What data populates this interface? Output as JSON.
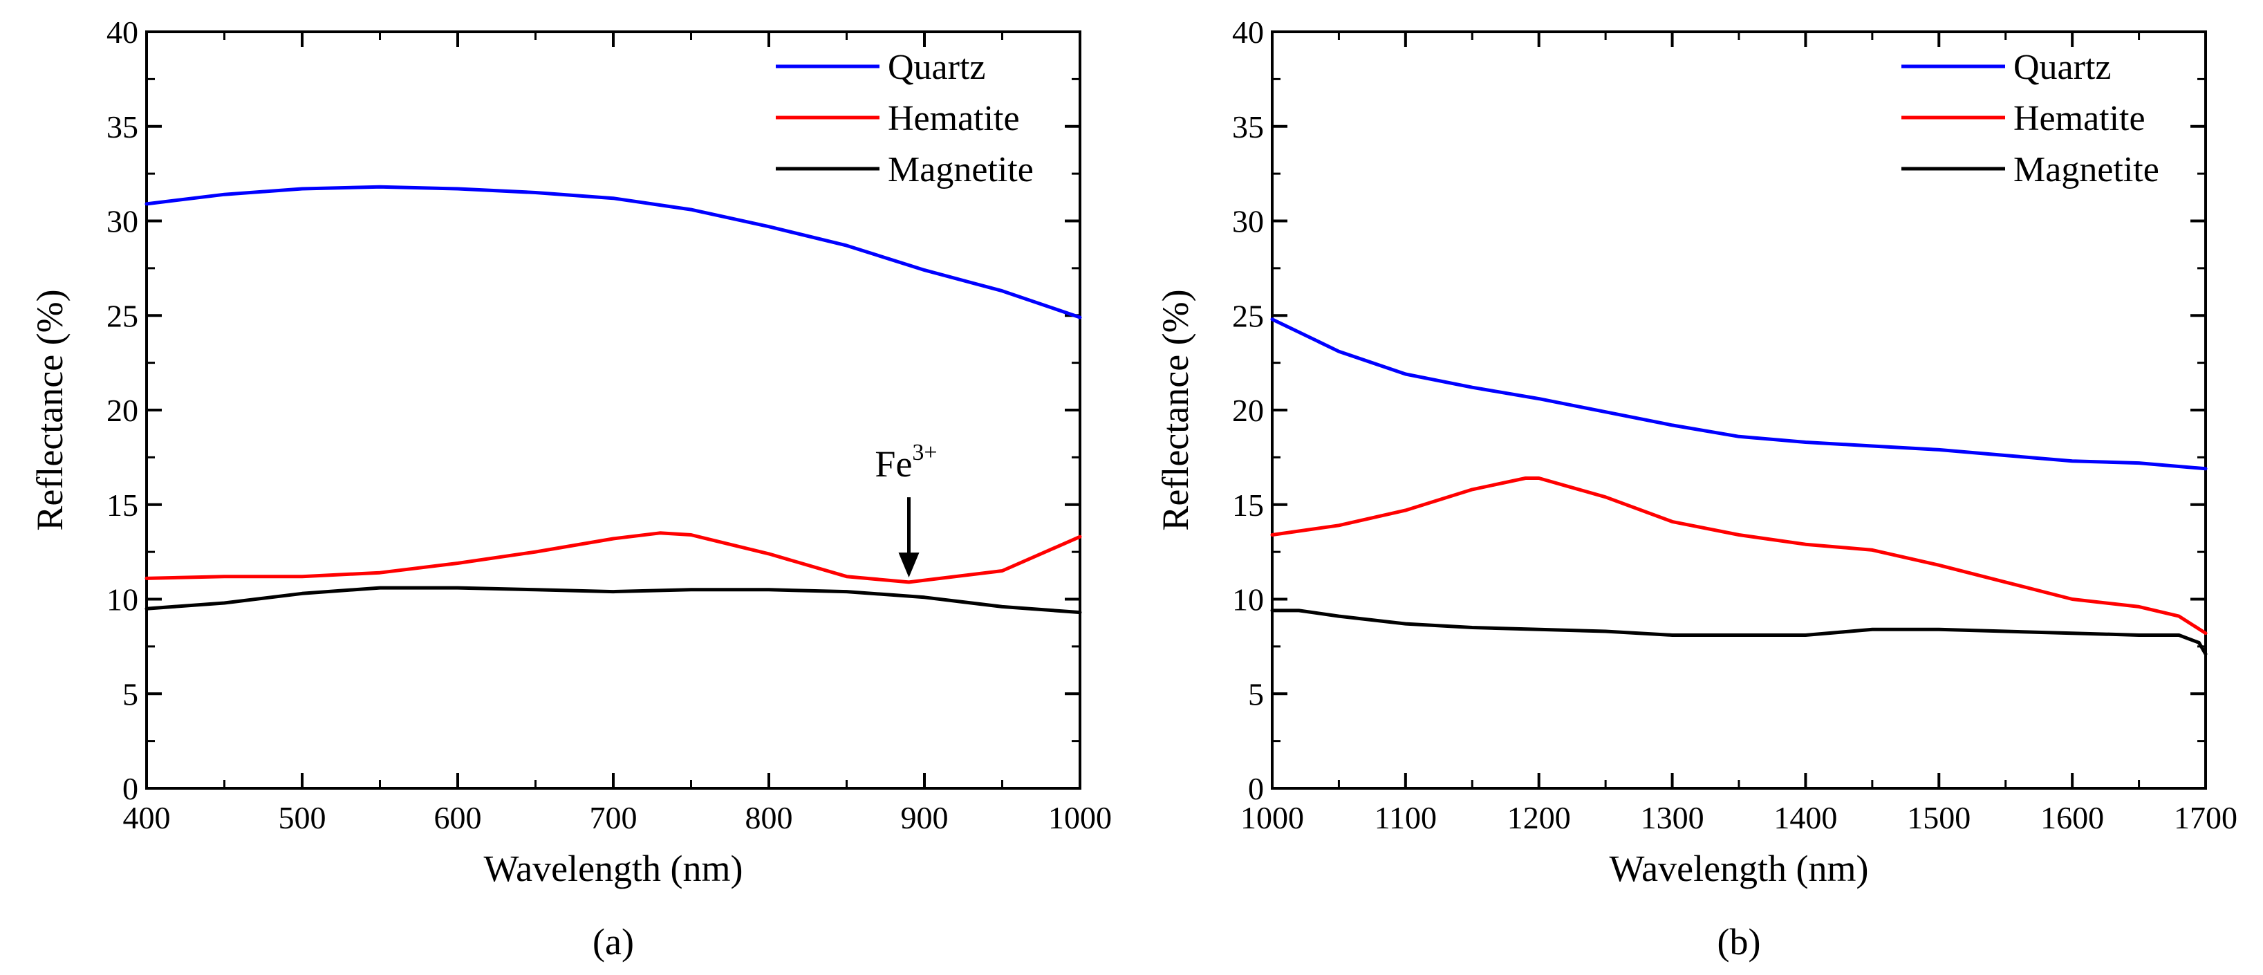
{
  "chart_data": [
    {
      "type": "line",
      "panel_label": "(a)",
      "xlabel": "Wavelength (nm)",
      "ylabel": "Reflectance (%)",
      "xlim": [
        400,
        1000
      ],
      "ylim": [
        0,
        40
      ],
      "xticks": [
        "400",
        "500",
        "600",
        "700",
        "800",
        "900",
        "1000"
      ],
      "yticks": [
        "0",
        "5",
        "10",
        "15",
        "20",
        "25",
        "30",
        "35",
        "40"
      ],
      "legend_position": "top-right",
      "annotation": {
        "text": "Fe",
        "sup": "3+",
        "x": 890,
        "y": 11.0
      },
      "series": [
        {
          "name": "Quartz",
          "color": "#0000ff",
          "x": [
            400,
            450,
            500,
            550,
            600,
            650,
            700,
            750,
            800,
            850,
            900,
            950,
            1000
          ],
          "y": [
            30.9,
            31.4,
            31.7,
            31.8,
            31.7,
            31.5,
            31.2,
            30.6,
            29.7,
            28.7,
            27.4,
            26.3,
            24.9
          ]
        },
        {
          "name": "Hematite",
          "color": "#ff0000",
          "x": [
            400,
            450,
            500,
            550,
            600,
            650,
            700,
            730,
            750,
            800,
            850,
            890,
            950,
            1000
          ],
          "y": [
            11.1,
            11.2,
            11.2,
            11.4,
            11.9,
            12.5,
            13.2,
            13.5,
            13.4,
            12.4,
            11.2,
            10.9,
            11.5,
            13.3
          ]
        },
        {
          "name": "Magnetite",
          "color": "#000000",
          "x": [
            400,
            450,
            500,
            550,
            600,
            650,
            700,
            750,
            800,
            850,
            900,
            950,
            1000
          ],
          "y": [
            9.5,
            9.8,
            10.3,
            10.6,
            10.6,
            10.5,
            10.4,
            10.5,
            10.5,
            10.4,
            10.1,
            9.6,
            9.3
          ]
        }
      ]
    },
    {
      "type": "line",
      "panel_label": "(b)",
      "xlabel": "Wavelength (nm)",
      "ylabel": "Reflectance (%)",
      "xlim": [
        1000,
        1700
      ],
      "ylim": [
        0,
        40
      ],
      "xticks": [
        "1000",
        "1100",
        "1200",
        "1300",
        "1400",
        "1500",
        "1600",
        "1700"
      ],
      "yticks": [
        "0",
        "5",
        "10",
        "15",
        "20",
        "25",
        "30",
        "35",
        "40"
      ],
      "legend_position": "top-right",
      "series": [
        {
          "name": "Quartz",
          "color": "#0000ff",
          "x": [
            1000,
            1050,
            1100,
            1150,
            1200,
            1250,
            1300,
            1350,
            1400,
            1450,
            1500,
            1550,
            1600,
            1650,
            1700
          ],
          "y": [
            24.8,
            23.1,
            21.9,
            21.2,
            20.6,
            19.9,
            19.2,
            18.6,
            18.3,
            18.1,
            17.9,
            17.6,
            17.3,
            17.2,
            16.9
          ]
        },
        {
          "name": "Hematite",
          "color": "#ff0000",
          "x": [
            1000,
            1050,
            1100,
            1150,
            1190,
            1200,
            1250,
            1300,
            1350,
            1400,
            1450,
            1500,
            1550,
            1600,
            1650,
            1680,
            1700
          ],
          "y": [
            13.4,
            13.9,
            14.7,
            15.8,
            16.4,
            16.4,
            15.4,
            14.1,
            13.4,
            12.9,
            12.6,
            11.8,
            10.9,
            10.0,
            9.6,
            9.1,
            8.2
          ]
        },
        {
          "name": "Magnetite",
          "color": "#000000",
          "x": [
            1000,
            1020,
            1050,
            1100,
            1150,
            1200,
            1250,
            1300,
            1350,
            1400,
            1450,
            1500,
            1550,
            1600,
            1650,
            1680,
            1695,
            1700
          ],
          "y": [
            9.4,
            9.4,
            9.1,
            8.7,
            8.5,
            8.4,
            8.3,
            8.1,
            8.1,
            8.1,
            8.4,
            8.4,
            8.3,
            8.2,
            8.1,
            8.1,
            7.7,
            7.1
          ]
        }
      ]
    }
  ]
}
